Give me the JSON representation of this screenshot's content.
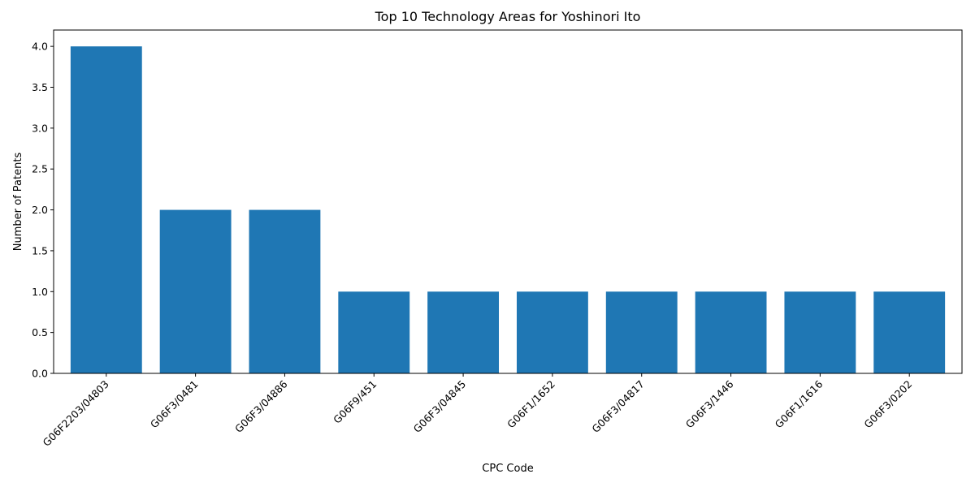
{
  "chart_data": {
    "type": "bar",
    "title": "Top 10 Technology Areas for Yoshinori Ito",
    "xlabel": "CPC Code",
    "ylabel": "Number of Patents",
    "categories": [
      "G06F2203/04803",
      "G06F3/0481",
      "G06F3/04886",
      "G06F9/451",
      "G06F3/04845",
      "G06F1/1652",
      "G06F3/04817",
      "G06F3/1446",
      "G06F1/1616",
      "G06F3/0202"
    ],
    "values": [
      4,
      2,
      2,
      1,
      1,
      1,
      1,
      1,
      1,
      1
    ],
    "ylim": [
      0,
      4.2
    ],
    "yticks": [
      0.0,
      0.5,
      1.0,
      1.5,
      2.0,
      2.5,
      3.0,
      3.5,
      4.0
    ],
    "grid": false,
    "bar_color": "#1f77b4"
  }
}
